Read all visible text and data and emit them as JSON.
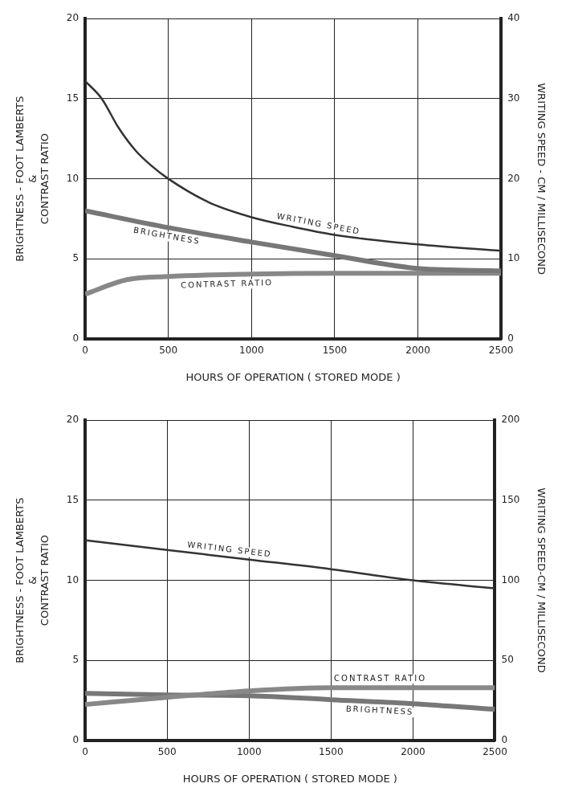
{
  "chart_data": [
    {
      "type": "line",
      "xlabel": "HOURS OF OPERATION ( STORED MODE )",
      "ylabel": "BRIGHTNESS - FOOT LAMBERTS\n&\nCONTRAST RATIO",
      "y2label": "WRITING SPEED - CM / MILLISECOND",
      "xlim": [
        0,
        2500
      ],
      "xticks": [
        0,
        500,
        1000,
        1500,
        2000,
        2500
      ],
      "ylim": [
        0,
        20
      ],
      "yticks": [
        0,
        5,
        10,
        15,
        20
      ],
      "y2lim": [
        0,
        40
      ],
      "y2ticks": [
        0,
        10,
        20,
        30,
        40
      ],
      "grid": true,
      "legend": false,
      "marker": "none",
      "line_style": "solid",
      "series": [
        {
          "name": "WRITING SPEED",
          "color": "#333333",
          "axis": "y2",
          "x": [
            0,
            100,
            200,
            300,
            400,
            500,
            750,
            1000,
            1250,
            1500,
            2000,
            2500
          ],
          "values": [
            32.2,
            30,
            26.4,
            23.6,
            21.6,
            20,
            17,
            15.2,
            14,
            13,
            11.8,
            11
          ]
        },
        {
          "name": "BRIGHTNESS",
          "color": "#777777",
          "x": [
            0,
            500,
            1000,
            1500,
            2000,
            2500
          ],
          "values": [
            8,
            6.95,
            6.05,
            5.2,
            4.4,
            4.25
          ]
        },
        {
          "name": "CONTRAST RATIO",
          "color": "#888888",
          "x": [
            0,
            250,
            500,
            1000,
            1500,
            2000,
            2500
          ],
          "values": [
            2.8,
            3.7,
            3.9,
            4.05,
            4.1,
            4.1,
            4.1
          ]
        }
      ]
    },
    {
      "type": "line",
      "xlabel": "HOURS OF OPERATION ( STORED MODE )",
      "ylabel": "BRIGHTNESS - FOOT LAMBERTS\n&\nCONTRAST RATIO",
      "y2label": "WRITING SPEED-CM / MILLISECOND",
      "xlim": [
        0,
        2500
      ],
      "xticks": [
        0,
        500,
        1000,
        1500,
        2000,
        2500
      ],
      "ylim": [
        0,
        20
      ],
      "yticks": [
        0,
        5,
        10,
        15,
        20
      ],
      "y2lim": [
        0,
        200
      ],
      "y2ticks": [
        0,
        50,
        100,
        150,
        200
      ],
      "grid": true,
      "legend": false,
      "marker": "none",
      "line_style": "solid",
      "series": [
        {
          "name": "WRITING SPEED",
          "color": "#333333",
          "axis": "y2",
          "x": [
            0,
            500,
            1000,
            1500,
            2000,
            2500
          ],
          "values": [
            125,
            119,
            113,
            107,
            100,
            95
          ]
        },
        {
          "name": "CONTRAST RATIO",
          "color": "#888888",
          "x": [
            0,
            500,
            1000,
            1500,
            2000,
            2500
          ],
          "values": [
            2.25,
            2.7,
            3.1,
            3.3,
            3.3,
            3.3
          ]
        },
        {
          "name": "BRIGHTNESS",
          "color": "#777777",
          "x": [
            0,
            500,
            1000,
            1500,
            2000,
            2500
          ],
          "values": [
            2.95,
            2.85,
            2.8,
            2.55,
            2.3,
            1.95
          ]
        }
      ]
    }
  ]
}
